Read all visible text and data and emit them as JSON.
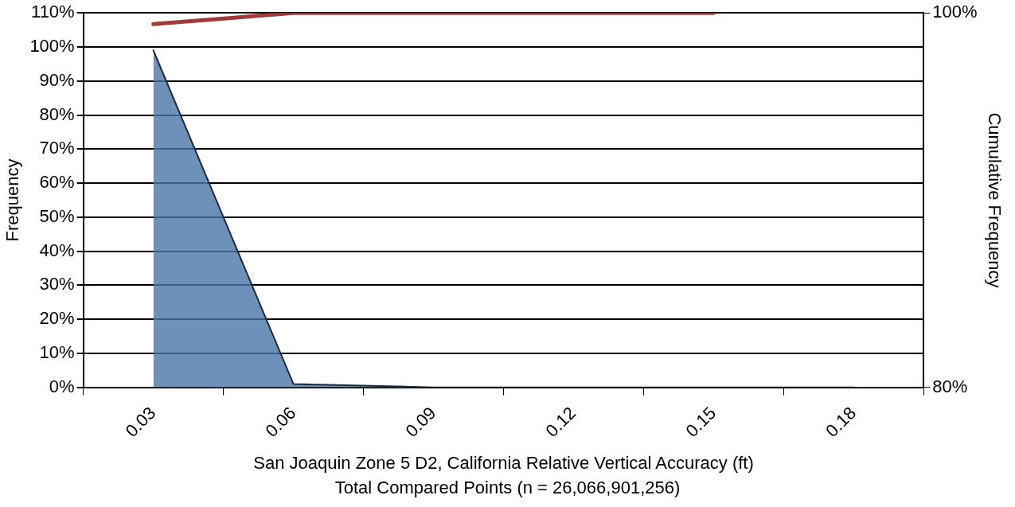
{
  "chart_data": {
    "type": "area",
    "xlabel": "San Joaquin Zone 5 D2, California Relative Vertical Accuracy (ft)",
    "ylabel": "Frequency",
    "y2label": "Cumulative Frequency",
    "annotations": [
      "Total Compared Points (n = 26,066,901,256)"
    ],
    "categories": [
      "0.03",
      "0.06",
      "0.09",
      "0.12",
      "0.15",
      "0.18"
    ],
    "series": [
      {
        "color": "#4a75a8",
        "values": [
          99,
          1,
          0,
          0,
          0,
          0
        ]
      },
      {
        "type": "line",
        "axis": "y2",
        "color": "#a33a3a",
        "values": [
          99.4,
          100,
          100,
          100,
          100,
          null
        ]
      }
    ],
    "ylim": [
      0,
      110
    ],
    "yticks": [
      {
        "value": 0,
        "label": "0%"
      },
      {
        "value": 10,
        "label": "10%"
      },
      {
        "value": 20,
        "label": "20%"
      },
      {
        "value": 30,
        "label": "30%"
      },
      {
        "value": 40,
        "label": "40%"
      },
      {
        "value": 50,
        "label": "50%"
      },
      {
        "value": 60,
        "label": "60%"
      },
      {
        "value": 70,
        "label": "70%"
      },
      {
        "value": 80,
        "label": "80%"
      },
      {
        "value": 90,
        "label": "90%"
      },
      {
        "value": 100,
        "label": "100%"
      },
      {
        "value": 110,
        "label": "110%"
      }
    ],
    "y2lim": [
      80,
      100
    ],
    "y2ticks": [
      {
        "value": 80,
        "label": "80%"
      },
      {
        "value": 100,
        "label": "100%"
      }
    ],
    "grid": "y",
    "legend": false,
    "marker": "none"
  }
}
